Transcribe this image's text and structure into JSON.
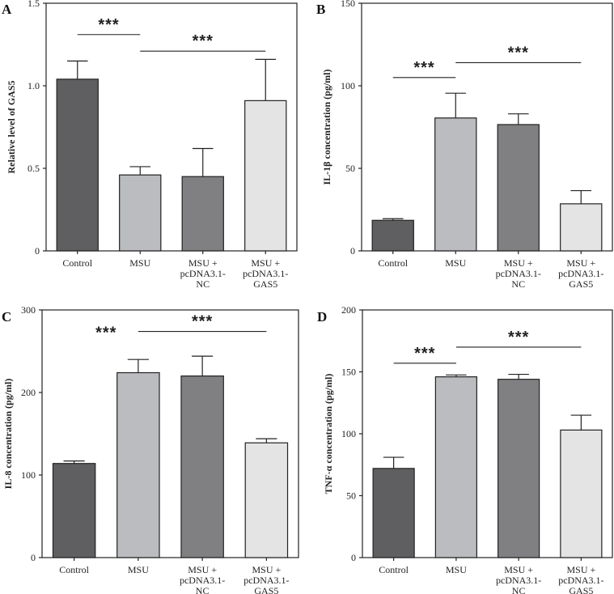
{
  "chart_data": [
    {
      "type": "bar",
      "panel": "A",
      "title": "",
      "xlabel": "",
      "ylabel": "Relative level of GAS5",
      "ylim": [
        0,
        1.5
      ],
      "yticks": [
        0,
        0.5,
        1.0,
        1.5
      ],
      "ytick_labels": [
        "0",
        "0.5",
        "1.0",
        "1.5"
      ],
      "categories": [
        [
          "Control"
        ],
        [
          "MSU"
        ],
        [
          "MSU +",
          "pcDNA3.1-",
          "NC"
        ],
        [
          "MSU +",
          "pcDNA3.1-",
          "GAS5"
        ]
      ],
      "values": [
        1.04,
        0.46,
        0.45,
        0.91
      ],
      "errors": [
        0.11,
        0.05,
        0.17,
        0.25
      ],
      "colors": [
        "#5f5f61",
        "#bbbcbf",
        "#808083",
        "#e4e4e5"
      ],
      "significance": [
        {
          "from": 0,
          "to": 1,
          "label": "***",
          "y": 1.31
        },
        {
          "from": 1,
          "to": 3,
          "label": "***",
          "y": 1.21
        }
      ],
      "grid": false,
      "legend": "none"
    },
    {
      "type": "bar",
      "panel": "B",
      "title": "",
      "xlabel": "",
      "ylabel": "IL-1β concentration (pg/ml)",
      "ylim": [
        0,
        150
      ],
      "yticks": [
        0,
        50,
        100,
        150
      ],
      "ytick_labels": [
        "0",
        "50",
        "100",
        "150"
      ],
      "categories": [
        [
          "Control"
        ],
        [
          "MSU"
        ],
        [
          "MSU +",
          "pcDNA3.1-",
          "NC"
        ],
        [
          "MSU +",
          "pcDNA3.1-",
          "GAS5"
        ]
      ],
      "values": [
        18.5,
        80.5,
        76.5,
        28.5
      ],
      "errors": [
        1.0,
        15.0,
        6.5,
        8.0
      ],
      "colors": [
        "#5f5f61",
        "#bbbcbf",
        "#808083",
        "#e4e4e5"
      ],
      "significance": [
        {
          "from": 0,
          "to": 1,
          "label": "***",
          "y": 105
        },
        {
          "from": 1,
          "to": 3,
          "label": "***",
          "y": 114
        }
      ],
      "grid": false,
      "legend": "none"
    },
    {
      "type": "bar",
      "panel": "C",
      "title": "",
      "xlabel": "",
      "ylabel": "IL-8 concentration (pg/ml)",
      "ylim": [
        0,
        300
      ],
      "yticks": [
        0,
        100,
        200,
        300
      ],
      "ytick_labels": [
        "0",
        "100",
        "200",
        "300"
      ],
      "categories": [
        [
          "Control"
        ],
        [
          "MSU"
        ],
        [
          "MSU +",
          "pcDNA3.1-",
          "NC"
        ],
        [
          "MSU +",
          "pcDNA3.1-",
          "GAS5"
        ]
      ],
      "values": [
        114,
        224,
        220,
        139
      ],
      "errors": [
        3,
        16,
        24,
        5
      ],
      "colors": [
        "#5f5f61",
        "#bbbcbf",
        "#808083",
        "#e4e4e5"
      ],
      "significance": [
        {
          "from": 0,
          "to": 1,
          "label": "***",
          "y": null,
          "label_y": 272
        },
        {
          "from": 1,
          "to": 3,
          "label": "***",
          "y": 274
        }
      ],
      "grid": false,
      "legend": "none"
    },
    {
      "type": "bar",
      "panel": "D",
      "title": "",
      "xlabel": "",
      "ylabel": "TNF-α concentration (pg/ml)",
      "ylim": [
        0,
        200
      ],
      "yticks": [
        0,
        50,
        100,
        150,
        200
      ],
      "ytick_labels": [
        "0",
        "50",
        "100",
        "150",
        "200"
      ],
      "categories": [
        [
          "Control"
        ],
        [
          "MSU"
        ],
        [
          "MSU +",
          "pcDNA3.1-",
          "NC"
        ],
        [
          "MSU +",
          "pcDNA3.1-",
          "GAS5"
        ]
      ],
      "values": [
        72,
        146,
        144,
        103
      ],
      "errors": [
        9,
        1.5,
        4,
        12
      ],
      "colors": [
        "#5f5f61",
        "#bbbcbf",
        "#808083",
        "#e4e4e5"
      ],
      "significance": [
        {
          "from": 0,
          "to": 1,
          "label": "***",
          "y": 157
        },
        {
          "from": 1,
          "to": 3,
          "label": "***",
          "y": 170
        }
      ],
      "grid": false,
      "legend": "none"
    }
  ]
}
